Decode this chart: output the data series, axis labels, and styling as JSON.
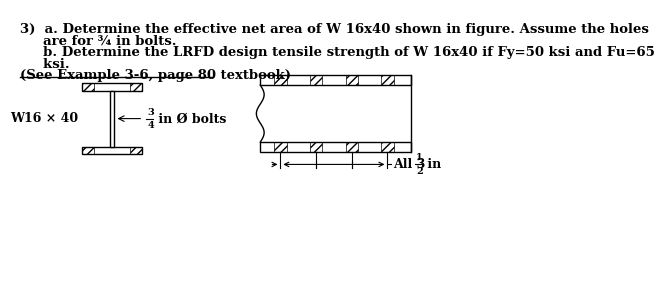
{
  "bg_color": "#ffffff",
  "text_color": "#000000",
  "line_color": "#000000",
  "title_line1": "3)  a. Determine the effective net area of W 16x40 shown in figure. Assume the holes",
  "title_line2": "     are for ¾ in bolts.",
  "title_line3": "     b. Determine the LRFD design tensile strength of W 16x40 if Fy=50 ksi and Fu=65",
  "title_line4": "     ksi.",
  "title_line5": "(See Example 3-6, page 80 textbook)",
  "label_w16": "W16 × 40",
  "label_bolts_suffix": " in Ø bolts",
  "label_spacing_prefix": "All 3",
  "label_spacing_suffix": " in",
  "font_size_text": 9.5,
  "font_size_label": 9,
  "font_size_small": 7
}
